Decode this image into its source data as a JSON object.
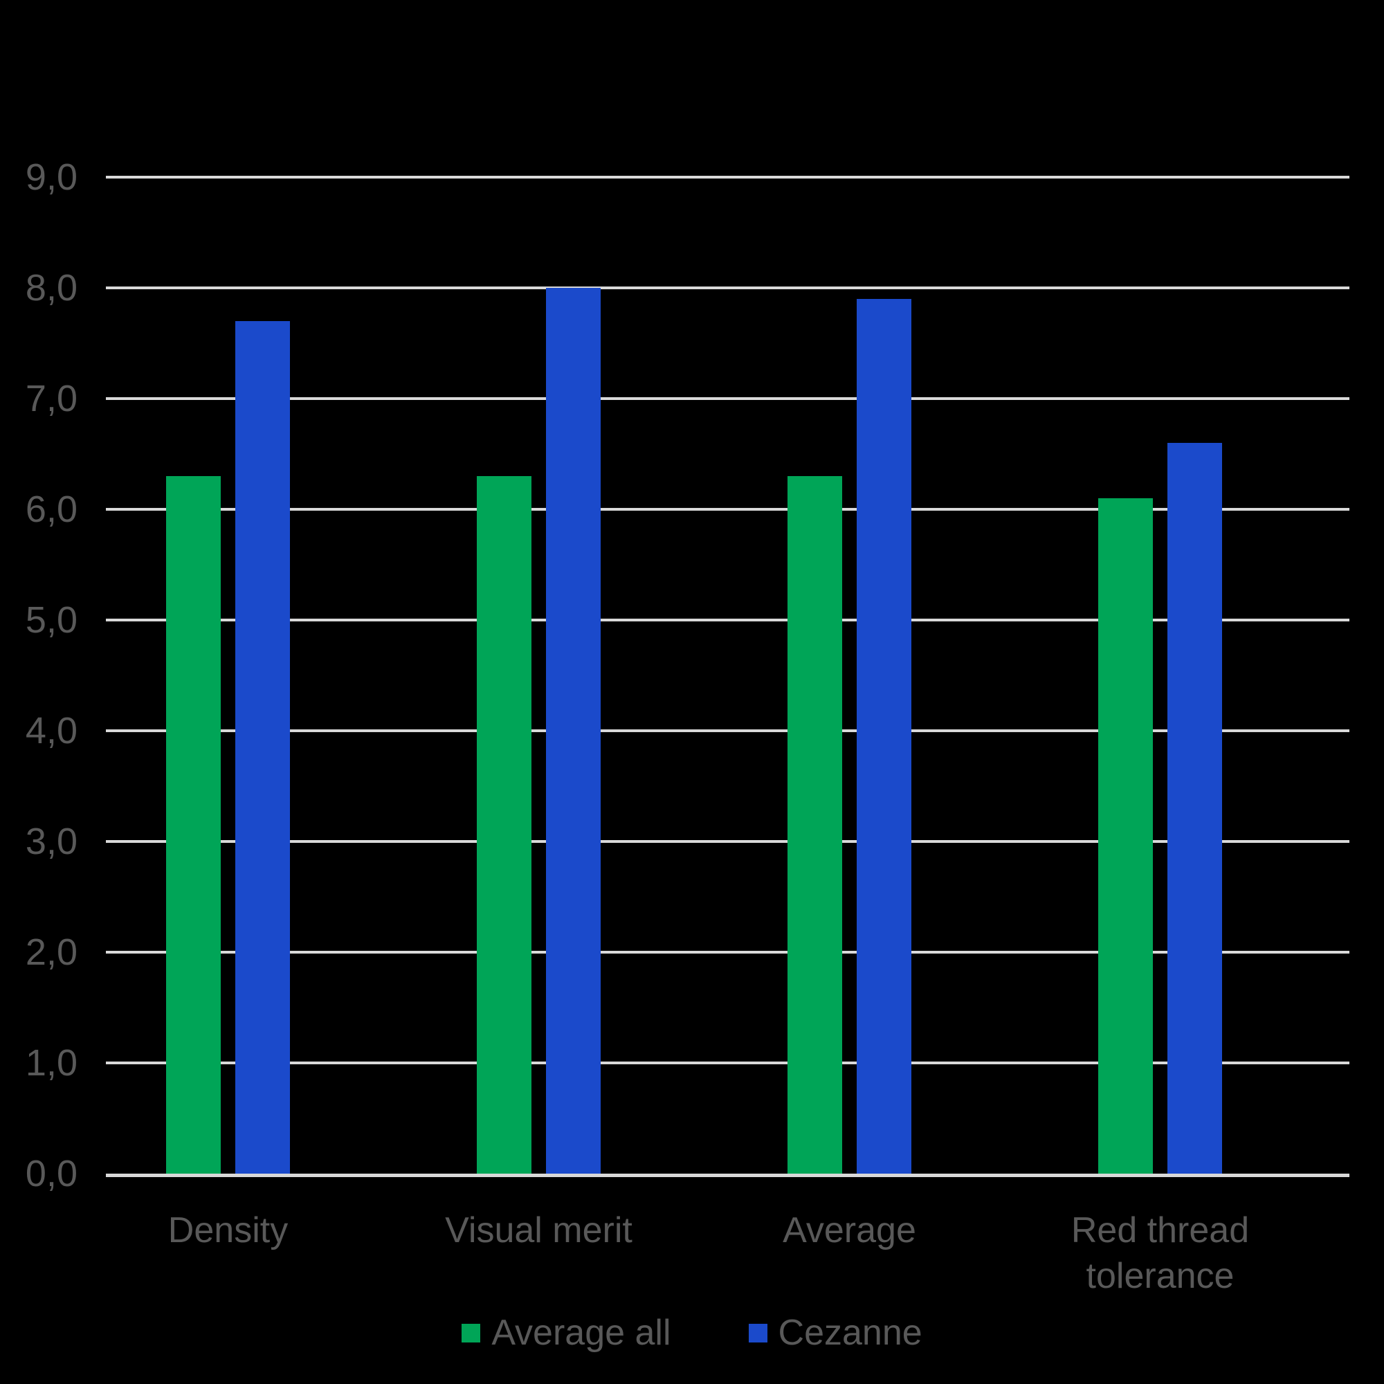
{
  "chart_data": {
    "type": "bar",
    "title": "",
    "xlabel": "",
    "ylabel": "",
    "categories": [
      "Density",
      "Visual merit",
      "Average",
      "Red thread tolerance"
    ],
    "series": [
      {
        "name": "Average all",
        "color": "#00a557",
        "values": [
          6.3,
          6.3,
          6.3,
          6.1
        ]
      },
      {
        "name": "Cezanne",
        "color": "#1b4acb",
        "values": [
          7.7,
          8.0,
          7.9,
          6.6
        ]
      }
    ],
    "ylim": [
      0,
      9
    ],
    "ytick_step": 1,
    "ytick_labels": [
      "0,0",
      "1,0",
      "2,0",
      "3,0",
      "4,0",
      "5,0",
      "6,0",
      "7,0",
      "8,0",
      "9,0"
    ],
    "grid": true,
    "legend_position": "bottom"
  },
  "colors": {
    "background": "#000000",
    "gridline": "#d9d9d9",
    "axis_line": "#d9d9d9",
    "tick_label_text": "#595959",
    "category_label_text": "#595959",
    "legend_text": "#595959",
    "series_green": "#00a557",
    "series_blue": "#1b4acb"
  },
  "legend": {
    "items": [
      {
        "label": "Average all",
        "color": "#00a557"
      },
      {
        "label": "Cezanne",
        "color": "#1b4acb"
      }
    ]
  }
}
